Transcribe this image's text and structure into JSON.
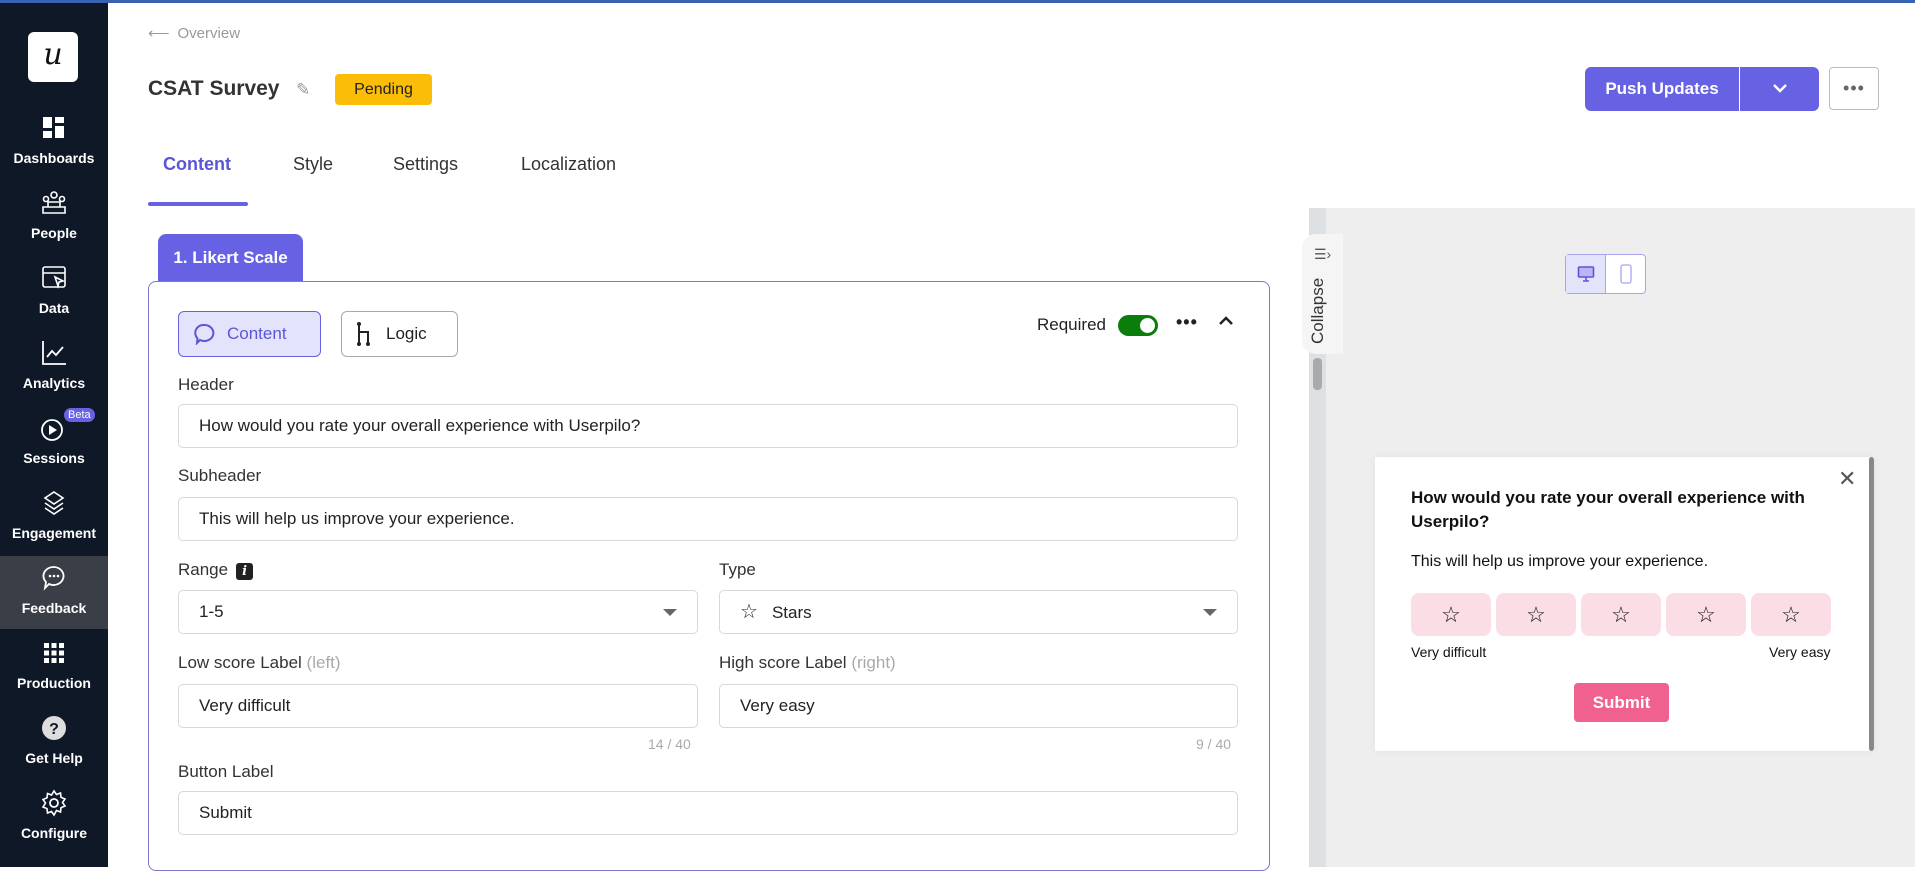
{
  "sidebar": {
    "logo": "u",
    "items": [
      {
        "label": "Dashboards",
        "icon": "dashboard-icon"
      },
      {
        "label": "People",
        "icon": "people-icon"
      },
      {
        "label": "Data",
        "icon": "data-icon"
      },
      {
        "label": "Analytics",
        "icon": "analytics-icon"
      },
      {
        "label": "Sessions",
        "icon": "play-icon",
        "badge": "Beta"
      },
      {
        "label": "Engagement",
        "icon": "layers-icon"
      },
      {
        "label": "Feedback",
        "icon": "chat-icon",
        "active": true
      },
      {
        "label": "Production",
        "icon": "grid-icon"
      },
      {
        "label": "Get Help",
        "icon": "help-icon"
      },
      {
        "label": "Configure",
        "icon": "gear-icon"
      }
    ]
  },
  "header": {
    "breadcrumb": "Overview",
    "title": "CSAT Survey",
    "status": "Pending",
    "push_label": "Push Updates",
    "tabs": [
      {
        "label": "Content",
        "active": true
      },
      {
        "label": "Style"
      },
      {
        "label": "Settings"
      },
      {
        "label": "Localization"
      }
    ]
  },
  "editor": {
    "step_tab": "1. Likert Scale",
    "content_btn": "Content",
    "logic_btn": "Logic",
    "required_label": "Required",
    "required": true,
    "header_label": "Header",
    "header_value": "How would you rate your overall experience with Userpilo?",
    "subheader_label": "Subheader",
    "subheader_value": "This will help us improve your experience.",
    "range_label": "Range",
    "range_value": "1-5",
    "type_label": "Type",
    "type_value": "Stars",
    "low_label": "Low score Label",
    "low_hint": "(left)",
    "low_value": "Very difficult",
    "low_count": "14 / 40",
    "high_label": "High score Label",
    "high_hint": "(right)",
    "high_value": "Very easy",
    "high_count": "9 / 40",
    "button_label": "Button Label",
    "button_value": "Submit"
  },
  "preview": {
    "collapse": "Collapse",
    "device_selected": "desktop",
    "title": "How would you rate your overall experience with Userpilo?",
    "subtitle": "This will help us improve your experience.",
    "star_count": 5,
    "low": "Very difficult",
    "high": "Very easy",
    "submit": "Submit"
  },
  "colors": {
    "accent": "#6762e3",
    "pending": "#fbbd08",
    "toggle": "#0a7d0a",
    "submit": "#f06190",
    "star_bg": "#fbdde6"
  }
}
